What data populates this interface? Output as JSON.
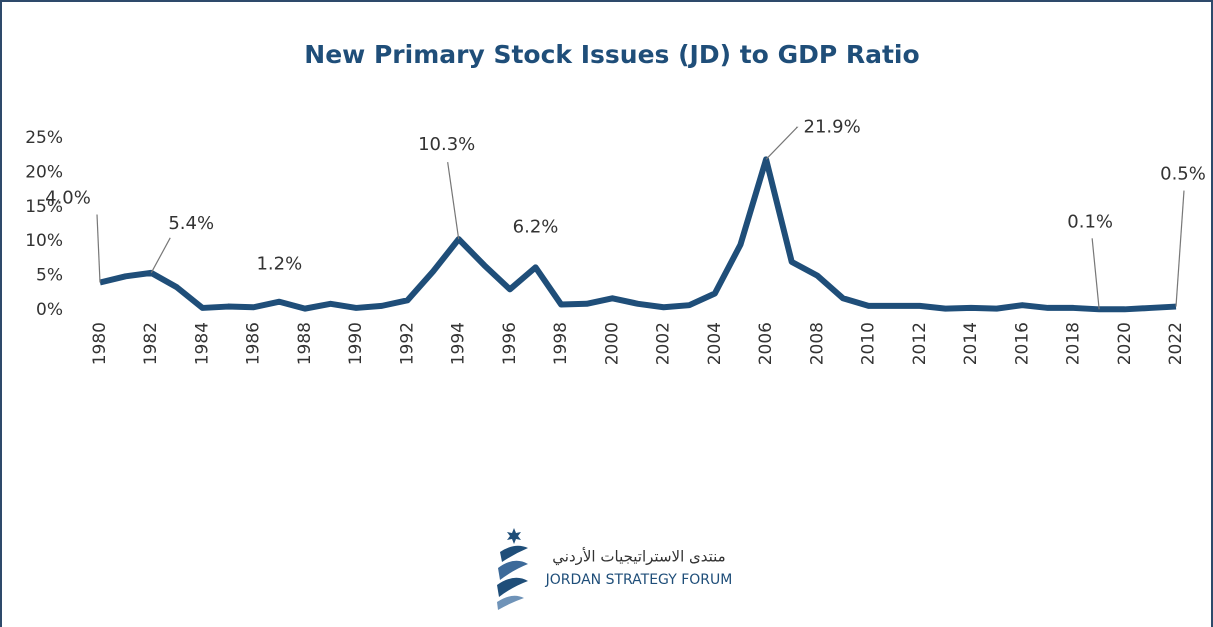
{
  "chart_data": {
    "type": "line",
    "title": "New Primary Stock Issues (JD) to GDP Ratio",
    "x": [
      1980,
      1981,
      1982,
      1983,
      1984,
      1985,
      1986,
      1987,
      1988,
      1989,
      1990,
      1991,
      1992,
      1993,
      1994,
      1995,
      1996,
      1997,
      1998,
      1999,
      2000,
      2001,
      2002,
      2003,
      2004,
      2005,
      2006,
      2007,
      2008,
      2009,
      2010,
      2011,
      2012,
      2013,
      2014,
      2015,
      2016,
      2017,
      2018,
      2019,
      2020,
      2021,
      2022
    ],
    "series": [
      {
        "name": "New Primary Stock Issues to GDP",
        "color": "#1f4e79",
        "values": [
          4.0,
          4.9,
          5.4,
          3.3,
          0.3,
          0.5,
          0.4,
          1.2,
          0.2,
          0.9,
          0.3,
          0.6,
          1.4,
          5.6,
          10.3,
          6.5,
          3.0,
          6.2,
          0.8,
          0.9,
          1.7,
          0.9,
          0.4,
          0.7,
          2.4,
          9.5,
          21.9,
          7.0,
          5.0,
          1.7,
          0.6,
          0.6,
          0.6,
          0.2,
          0.3,
          0.2,
          0.7,
          0.3,
          0.3,
          0.1,
          0.1,
          0.3,
          0.5
        ],
        "value_labels": [
          "4.0%",
          null,
          "5.4%",
          null,
          null,
          null,
          null,
          "1.2%",
          null,
          null,
          null,
          null,
          null,
          null,
          "10.3%",
          null,
          null,
          "6.2%",
          null,
          null,
          null,
          null,
          null,
          null,
          null,
          null,
          "21.9%",
          null,
          null,
          null,
          null,
          null,
          null,
          null,
          null,
          null,
          null,
          null,
          null,
          "0.1%",
          null,
          null,
          "0.5%"
        ]
      }
    ],
    "xlim": [
      1980,
      2022
    ],
    "xticks": [
      1980,
      1982,
      1984,
      1986,
      1988,
      1990,
      1992,
      1994,
      1996,
      1998,
      2000,
      2002,
      2004,
      2006,
      2008,
      2010,
      2012,
      2014,
      2016,
      2018,
      2020,
      2022
    ],
    "ylim": [
      0,
      25
    ],
    "yticks": [
      {
        "value": 0,
        "label": "0%"
      },
      {
        "value": 5,
        "label": "5%"
      },
      {
        "value": 10,
        "label": "10%"
      },
      {
        "value": 15,
        "label": "15%"
      },
      {
        "value": 20,
        "label": "20%"
      },
      {
        "value": 25,
        "label": "25%"
      }
    ],
    "grid": false
  },
  "logo": {
    "arabic": "منتدى الاستراتيجيات الأردني",
    "english": "JORDAN STRATEGY FORUM"
  }
}
